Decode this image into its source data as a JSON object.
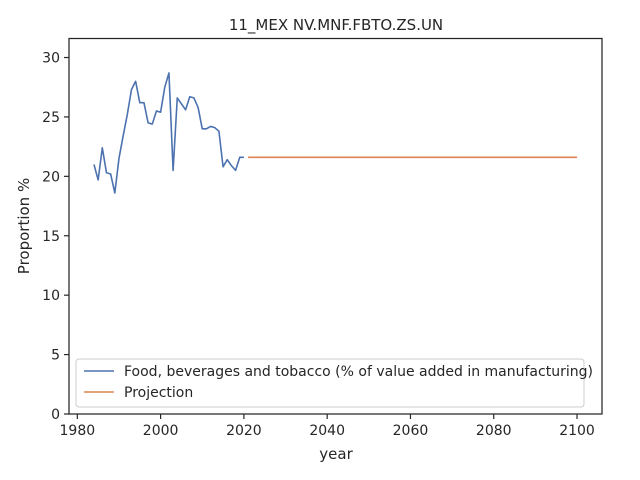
{
  "chart_data": {
    "type": "line",
    "title": "11_MEX NV.MNF.FBTO.ZS.UN",
    "xlabel": "year",
    "ylabel": "Proportion %",
    "xlim": [
      1978.0,
      2106.0
    ],
    "ylim": [
      0,
      31.6
    ],
    "xticks": [
      1980,
      2000,
      2020,
      2040,
      2060,
      2080,
      2100
    ],
    "yticks": [
      0,
      5,
      10,
      15,
      20,
      25,
      30
    ],
    "grid": false,
    "legend_position": "lower-left",
    "series": [
      {
        "name": "Food, beverages and tobacco (% of value added in manufacturing)",
        "color": "#4c72b0",
        "x": [
          1984,
          1985,
          1986,
          1987,
          1988,
          1989,
          1990,
          1991,
          1992,
          1993,
          1994,
          1995,
          1996,
          1997,
          1998,
          1999,
          2000,
          2001,
          2002,
          2003,
          2004,
          2005,
          2006,
          2007,
          2008,
          2009,
          2010,
          2011,
          2012,
          2013,
          2014,
          2015,
          2016,
          2017,
          2018,
          2019,
          2020
        ],
        "y": [
          21.0,
          19.7,
          22.4,
          20.3,
          20.2,
          18.6,
          21.5,
          23.4,
          25.2,
          27.3,
          28.0,
          26.2,
          26.2,
          24.5,
          24.4,
          25.5,
          25.4,
          27.5,
          28.7,
          20.5,
          26.6,
          26.1,
          25.6,
          26.7,
          26.6,
          25.8,
          24.0,
          24.0,
          24.2,
          24.1,
          23.8,
          20.8,
          21.4,
          20.9,
          20.5,
          21.6,
          21.6
        ]
      },
      {
        "name": "Projection",
        "color": "#dd8452",
        "x": [
          2021,
          2100
        ],
        "y": [
          21.6,
          21.6
        ]
      }
    ]
  }
}
